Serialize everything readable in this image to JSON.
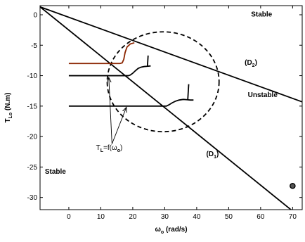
{
  "chart_data": {
    "type": "line",
    "xlabel": "ω_o (rad/s)",
    "ylabel": "T_Lo (N.m)",
    "xlim": [
      -9,
      73
    ],
    "ylim": [
      -32,
      1.5
    ],
    "xticks": [
      0,
      10,
      20,
      30,
      40,
      50,
      60,
      70
    ],
    "yticks": [
      0,
      -5,
      -10,
      -15,
      -20,
      -25,
      -30
    ],
    "grid": false,
    "lines": [
      {
        "name": "(D2)",
        "x": [
          -9,
          73
        ],
        "y": [
          1.3,
          -14.3
        ]
      },
      {
        "name": "(D1)",
        "x": [
          -9,
          73
        ],
        "y": [
          1.3,
          -33.5
        ]
      }
    ],
    "trajectories": [
      {
        "color": "#8b2500",
        "x": [
          0,
          16,
          16.7,
          17.2,
          17.6,
          18.2,
          19.2,
          20.5
        ],
        "y": [
          -8,
          -8,
          -7.9,
          -7.3,
          -6.2,
          -5.3,
          -4.8,
          -4.6
        ]
      },
      {
        "color": "#000000",
        "x": [
          0,
          18.6,
          19.2,
          20.0,
          20.8,
          21.7,
          22.6,
          23.6,
          24.8,
          25.6
        ],
        "y": [
          -10,
          -10,
          -9.9,
          -9.6,
          -9.2,
          -8.8,
          -8.6,
          -8.5,
          -8.45,
          -8.4
        ]
      },
      {
        "color": "#000000",
        "x": [
          24.6,
          24.8
        ],
        "y": [
          -8.4,
          -6.7
        ]
      },
      {
        "color": "#000000",
        "x": [
          0,
          30.5,
          31.3,
          32.2,
          33.3,
          34.5,
          35.8,
          37.0,
          38.0,
          39.0
        ],
        "y": [
          -15,
          -15,
          -14.8,
          -14.5,
          -14.2,
          -14.0,
          -13.9,
          -13.95,
          -14.0,
          -14.0
        ]
      },
      {
        "color": "#000000",
        "x": [
          37.2,
          37.5
        ],
        "y": [
          -14.0,
          -11.4
        ]
      }
    ],
    "ellipse": {
      "cx": 29.5,
      "cy": -11,
      "rx": 17.5,
      "ry": 8.2,
      "dashed": true
    },
    "annotation_arrows": [
      {
        "from": [
          13.5,
          -21.2
        ],
        "to": [
          12.5,
          -10.3
        ]
      },
      {
        "from": [
          13.5,
          -21.2
        ],
        "to": [
          18.0,
          -15.2
        ]
      }
    ],
    "marker": {
      "x": 70,
      "y": -28.1
    },
    "annotations": [
      {
        "text": "Stable",
        "x": 57,
        "y": -0.3
      },
      {
        "text": "(D",
        "sub": "2",
        "tail": ")",
        "x": 55,
        "y": -8.2
      },
      {
        "text": "Unstable",
        "x": 56,
        "y": -13.5
      },
      {
        "text": "(D",
        "sub": "1",
        "tail": ")",
        "x": 43,
        "y": -23.2
      },
      {
        "text": "Stable",
        "x": -7.5,
        "y": -26.1
      }
    ],
    "tl_label": {
      "main": "T",
      "sub": "L",
      "tail": "=f(ω",
      "sub2": "o",
      "end": ")",
      "x": 8.5,
      "y": -22.2
    }
  }
}
